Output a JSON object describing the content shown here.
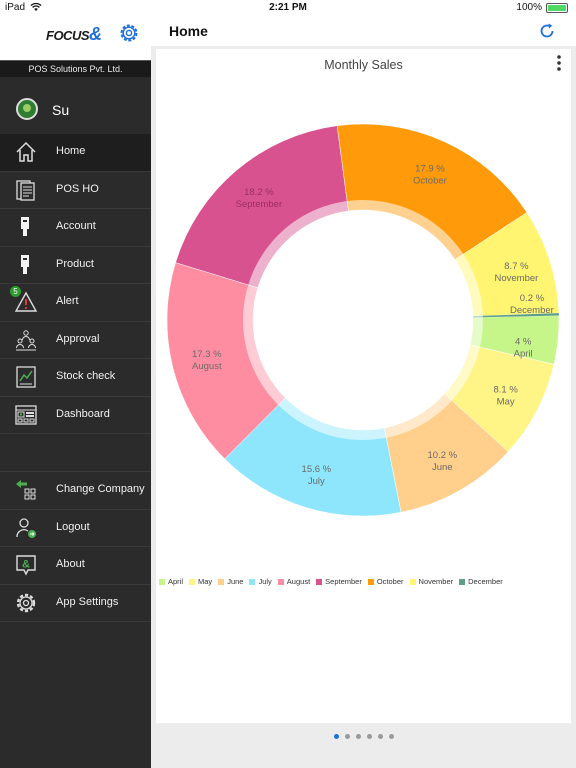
{
  "status_bar": {
    "carrier": "iPad",
    "time": "2:21 PM",
    "battery": "100%"
  },
  "brand": {
    "logo_text": "FOCUS",
    "logo_mark": "&"
  },
  "company": "POS Solutions Pvt. Ltd.",
  "user": {
    "name": "Su"
  },
  "menu": [
    {
      "label": "Home",
      "icon": "home-icon",
      "active": true
    },
    {
      "label": "POS HO",
      "icon": "documents-icon"
    },
    {
      "label": "Account",
      "icon": "account-icon"
    },
    {
      "label": "Product",
      "icon": "product-icon"
    },
    {
      "label": "Alert",
      "icon": "alert-icon",
      "badge": "5"
    },
    {
      "label": "Approval",
      "icon": "approval-icon"
    },
    {
      "label": "Stock check",
      "icon": "stock-check-icon"
    },
    {
      "label": "Dashboard",
      "icon": "dashboard-icon"
    }
  ],
  "menu_bottom": [
    {
      "label": "Change Company",
      "icon": "change-company-icon"
    },
    {
      "label": "Logout",
      "icon": "logout-icon"
    },
    {
      "label": "About",
      "icon": "about-icon"
    },
    {
      "label": "App Settings",
      "icon": "app-settings-icon"
    }
  ],
  "header": {
    "title": "Home"
  },
  "pager": {
    "pages": 6,
    "active": 0
  },
  "chart_data": {
    "type": "pie",
    "subtype": "donut",
    "title": "Monthly Sales",
    "categories": [
      "April",
      "May",
      "June",
      "July",
      "August",
      "September",
      "October",
      "November",
      "December"
    ],
    "values": [
      4,
      8.1,
      10.2,
      15.6,
      17.3,
      18.2,
      17.9,
      8.7,
      0.2
    ],
    "labels": [
      "4 %",
      "8.1 %",
      "10.2 %",
      "15.6 %",
      "17.3 %",
      "18.2 %",
      "17.9 %",
      "8.7 %",
      "0.2 %"
    ],
    "colors": [
      "#c6f58a",
      "#fff486",
      "#ffcf8b",
      "#8ee6fc",
      "#ff8da1",
      "#d95290",
      "#ff9a0b",
      "#fff570",
      "#5c9e88"
    ],
    "legend_position": "bottom-left"
  }
}
